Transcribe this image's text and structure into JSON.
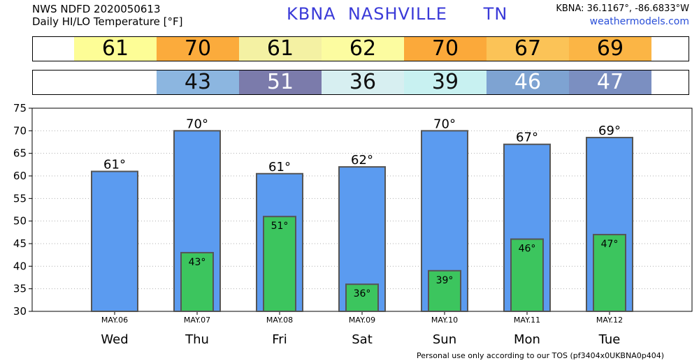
{
  "header": {
    "line1": "NWS NDFD 2020050613",
    "line2": "Daily HI/LO Temperature [°F]",
    "station": "KBNA  NASHVILLE      TN",
    "coords": "KBNA: 36.1167°, -86.6833°W",
    "site": "weathermodels.com"
  },
  "strips": {
    "hi": [
      {
        "value": "61",
        "color": "#fdfd96"
      },
      {
        "value": "70",
        "color": "#fbab3c"
      },
      {
        "value": "61",
        "color": "#f4f1a3"
      },
      {
        "value": "62",
        "color": "#fcfca0"
      },
      {
        "value": "70",
        "color": "#fba93a"
      },
      {
        "value": "67",
        "color": "#fbc357"
      },
      {
        "value": "69",
        "color": "#fbb545"
      }
    ],
    "lo": [
      {
        "value": "43",
        "color": "#8cb6e0",
        "text_color": "#111111"
      },
      {
        "value": "51",
        "color": "#7b7bab",
        "text_color": "#ffffff"
      },
      {
        "value": "36",
        "color": "#d7eff1",
        "text_color": "#111111"
      },
      {
        "value": "39",
        "color": "#c8f1f1",
        "text_color": "#111111"
      },
      {
        "value": "46",
        "color": "#7ea3d2",
        "text_color": "#ffffff"
      },
      {
        "value": "47",
        "color": "#7b8fc1",
        "text_color": "#ffffff"
      }
    ]
  },
  "chart_data": {
    "type": "bar",
    "categories": [
      "Wed",
      "Thu",
      "Fri",
      "Sat",
      "Sun",
      "Mon",
      "Tue"
    ],
    "dates": [
      "MAY.06",
      "MAY.07",
      "MAY.08",
      "MAY.09",
      "MAY.10",
      "MAY.11",
      "MAY.12"
    ],
    "series": [
      {
        "values": [
          61,
          70,
          60.5,
          62,
          70,
          67,
          68.5
        ],
        "labels": [
          "61°",
          "70°",
          "61°",
          "62°",
          "70°",
          "67°",
          "69°"
        ],
        "color": "#5b9bf0"
      },
      {
        "values": [
          null,
          43,
          51,
          36,
          39,
          46,
          47
        ],
        "labels": [
          "",
          "43°",
          "51°",
          "36°",
          "39°",
          "46°",
          "47°"
        ],
        "color": "#3cc55e"
      }
    ],
    "ylim": [
      30,
      75
    ],
    "yticks": [
      30,
      35,
      40,
      45,
      50,
      55,
      60,
      65,
      70,
      75
    ],
    "grid": "horizontal-dotted"
  },
  "footer": "Personal use only according to our TOS (pf3404x0UKBNA0p404)",
  "colors": {
    "bar_edge": "#555555"
  }
}
